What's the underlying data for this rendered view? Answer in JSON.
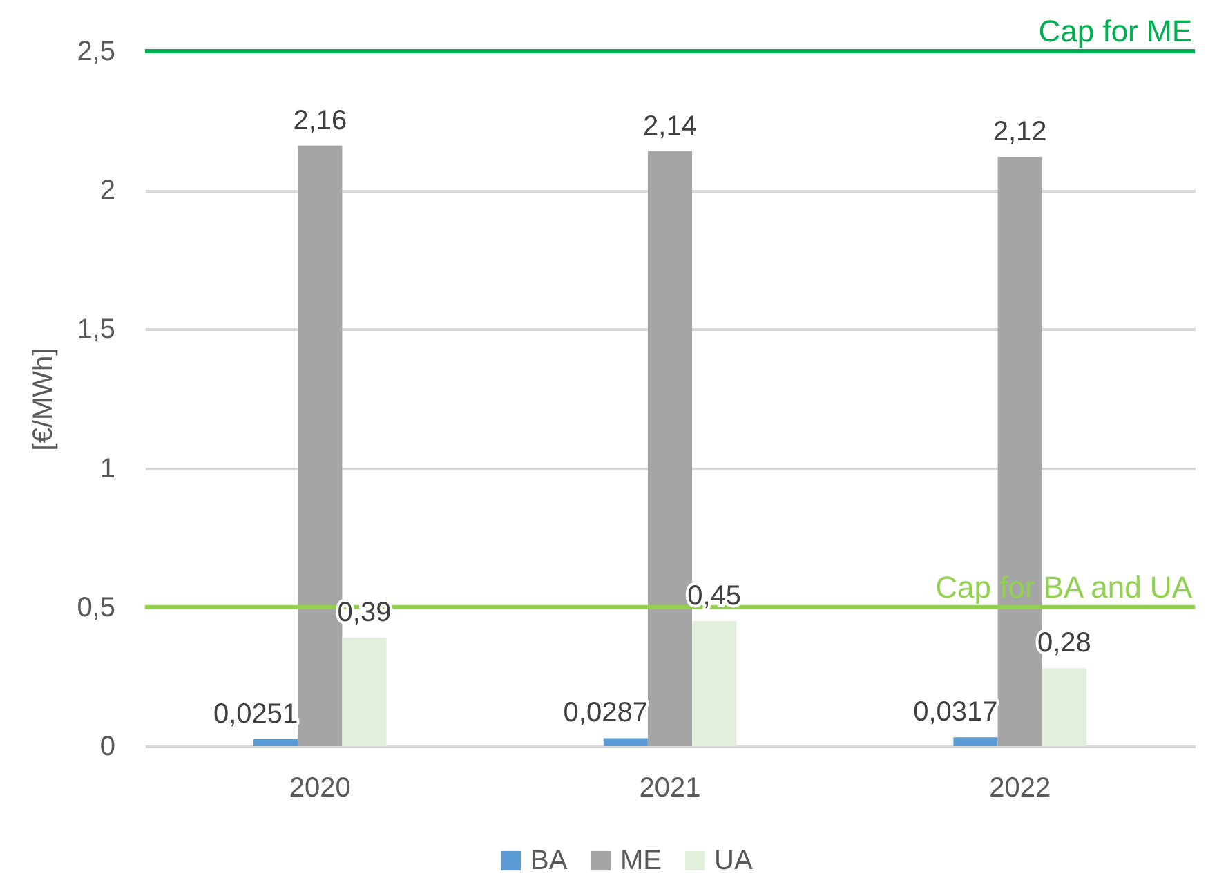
{
  "chart_data": {
    "type": "bar",
    "ylabel": "[€/MWh]",
    "categories": [
      "2020",
      "2021",
      "2022"
    ],
    "series": [
      {
        "name": "BA",
        "color": "#5b9bd5",
        "values": [
          0.0251,
          0.0287,
          0.0317
        ],
        "value_labels": [
          "0,0251",
          "0,0287",
          "0,0317"
        ]
      },
      {
        "name": "ME",
        "color": "#a5a5a5",
        "values": [
          2.16,
          2.14,
          2.12
        ],
        "value_labels": [
          "2,16",
          "2,14",
          "2,12"
        ]
      },
      {
        "name": "UA",
        "color": "#e2efda",
        "values": [
          0.39,
          0.45,
          0.28
        ],
        "value_labels": [
          "0,39",
          "0,45",
          "0,28"
        ]
      }
    ],
    "ylim": [
      0,
      2.5
    ],
    "yticks": [
      0,
      {
        "value": 0.5,
        "label": "0,5"
      },
      1,
      {
        "value": 1.5,
        "label": "1,5"
      },
      2,
      {
        "value": 2.5,
        "label": "2,5"
      }
    ],
    "ref_lines": [
      {
        "axis": "y",
        "value": 2.5,
        "label": "Cap for ME",
        "color": "#00b050"
      },
      {
        "axis": "y",
        "value": 0.5,
        "label": "Cap for BA and UA",
        "color": "#92d050"
      }
    ],
    "grid": "y",
    "legend": "bottom"
  }
}
